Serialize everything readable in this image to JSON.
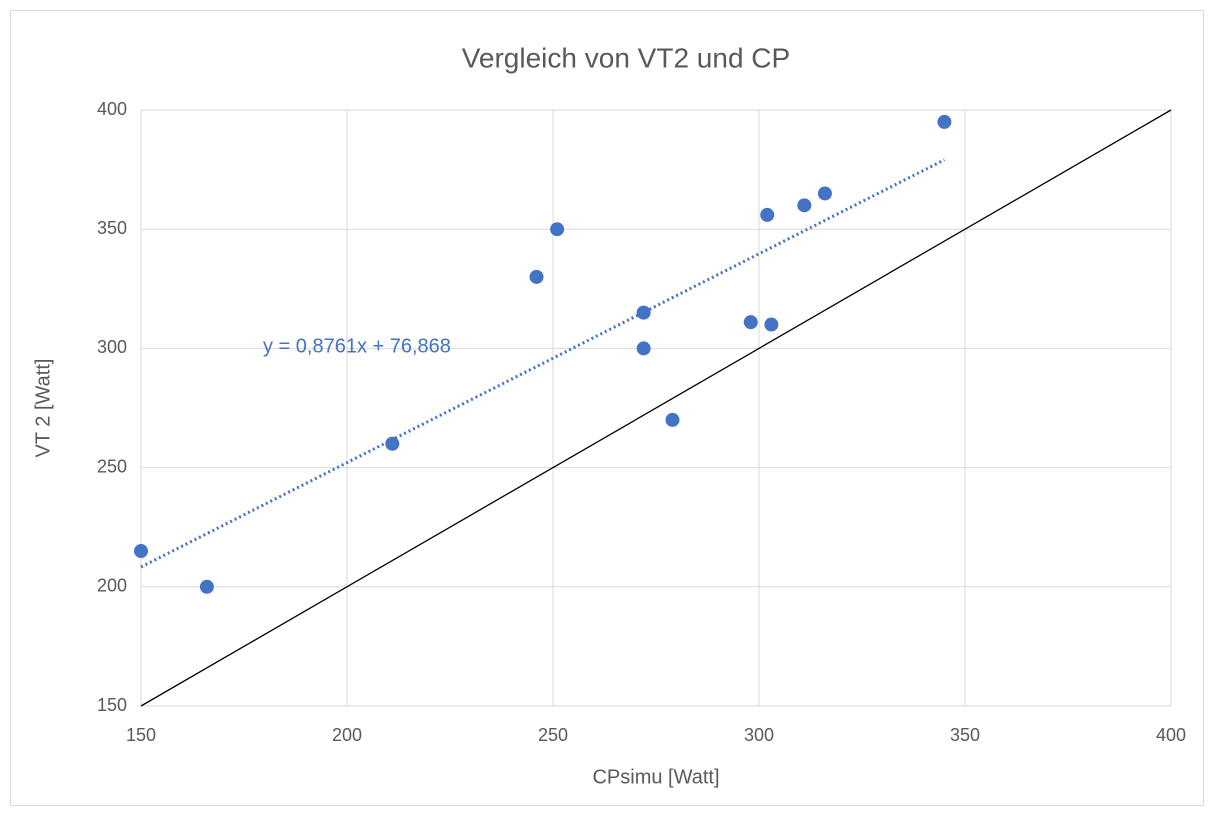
{
  "chart_data": {
    "type": "scatter",
    "title": "Vergleich von VT2 und CP",
    "x_label": "CPsimu [Watt]",
    "y_label": "VT 2 [Watt]",
    "xlim": [
      150,
      400
    ],
    "xticks": [
      150,
      200,
      250,
      300,
      350,
      400
    ],
    "ylim": [
      150,
      400
    ],
    "yticks": [
      150,
      200,
      250,
      300,
      350,
      400
    ],
    "grid": true,
    "points": {
      "color": "#4472c4",
      "x": [
        150,
        166,
        211,
        246,
        251,
        272,
        272,
        279,
        298,
        302,
        303,
        311,
        316,
        345
      ],
      "values": [
        215,
        200,
        260,
        330,
        350,
        315,
        300,
        270,
        311,
        356,
        310,
        360,
        365,
        395
      ]
    },
    "trendline": {
      "label": "y = 0,8761x + 76,868",
      "color": "#4472c4",
      "x": [
        150,
        345
      ],
      "values": [
        208.3,
        379.1
      ]
    },
    "reference_line": {
      "color": "#000000",
      "x": [
        150,
        400
      ],
      "values": [
        150,
        400
      ]
    }
  }
}
